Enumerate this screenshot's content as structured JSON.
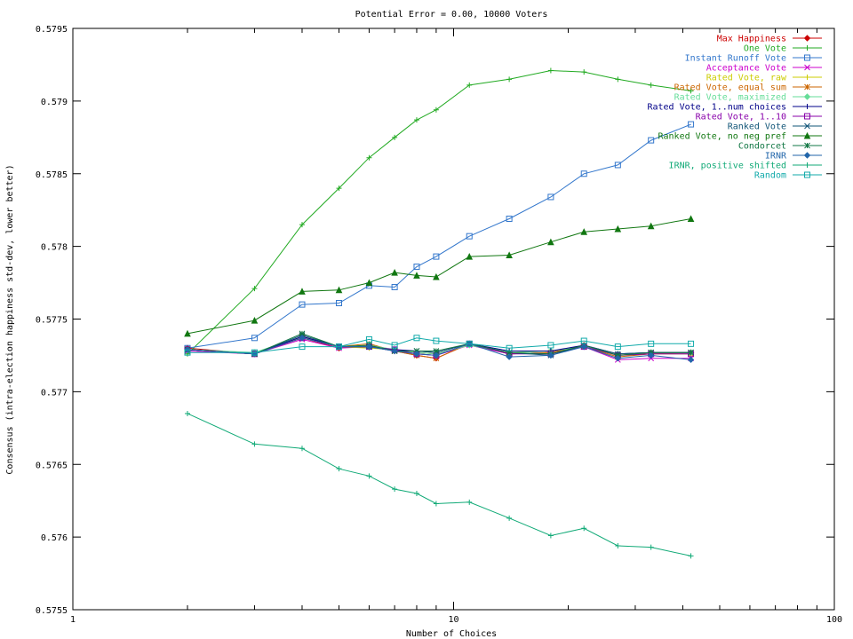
{
  "chart_data": {
    "type": "line",
    "title": "Potential Error = 0.00, 10000 Voters",
    "xlabel": "Number of Choices",
    "ylabel": "Consensus (intra-election happiness std-dev, lower better)",
    "x_scale": "log",
    "xlim": [
      1,
      100
    ],
    "ylim": [
      0.5755,
      0.5795
    ],
    "x_ticks": [
      1,
      10,
      100
    ],
    "x_tick_labels": [
      "1",
      "10",
      "100"
    ],
    "y_ticks": [
      0.5755,
      0.576,
      0.5765,
      0.577,
      0.5775,
      0.578,
      0.5785,
      0.579,
      0.5795
    ],
    "y_tick_labels": [
      "0.5755",
      "0.576",
      "0.5765",
      "0.577",
      "0.5775",
      "0.578",
      "0.5785",
      "0.579",
      "0.5795"
    ],
    "grid": false,
    "legend_position": "top-right",
    "x": [
      2,
      3,
      4,
      5,
      6,
      7,
      8,
      9,
      11,
      14,
      18,
      22,
      27,
      33,
      42
    ],
    "series": [
      {
        "name": "Max Happiness",
        "color": "#cc0000",
        "marker": "diamond",
        "values": [
          0.5773,
          0.57726,
          0.57737,
          0.5773,
          0.57732,
          0.57728,
          0.57725,
          0.57723,
          0.57733,
          0.57726,
          0.57727,
          0.57732,
          0.57725,
          0.57727,
          0.57727
        ]
      },
      {
        "name": "One Vote",
        "color": "#22aa22",
        "marker": "plus",
        "values": [
          0.57726,
          0.57771,
          0.57815,
          0.5784,
          0.57861,
          0.57875,
          0.57887,
          0.57894,
          0.57911,
          0.57915,
          0.57921,
          0.5792,
          0.57915,
          0.57911,
          0.57907
        ]
      },
      {
        "name": "Instant Runoff Vote",
        "color": "#3377cc",
        "marker": "square",
        "values": [
          0.5773,
          0.57737,
          0.5776,
          0.57761,
          0.57773,
          0.57772,
          0.57786,
          0.57793,
          0.57807,
          0.57819,
          0.57834,
          0.5785,
          0.57856,
          0.57873,
          0.57884
        ]
      },
      {
        "name": "Acceptance Vote",
        "color": "#cc00cc",
        "marker": "x",
        "values": [
          0.57728,
          0.57726,
          0.57736,
          0.5773,
          0.57731,
          0.57728,
          0.57726,
          0.57725,
          0.57732,
          0.57726,
          0.57727,
          0.57731,
          0.57722,
          0.57723,
          0.57723
        ]
      },
      {
        "name": "Rated Vote, raw",
        "color": "#cccc00",
        "marker": "plus",
        "values": [
          0.57729,
          0.57726,
          0.57737,
          0.57731,
          0.5773,
          0.57729,
          0.57727,
          0.57726,
          0.57732,
          0.57727,
          0.57728,
          0.57731,
          0.57725,
          0.57726,
          0.57727
        ]
      },
      {
        "name": "Rated Vote, equal sum",
        "color": "#cc6600",
        "marker": "star",
        "values": [
          0.57729,
          0.57726,
          0.57738,
          0.57731,
          0.57733,
          0.57728,
          0.57725,
          0.57723,
          0.57733,
          0.57726,
          0.57727,
          0.57731,
          0.57724,
          0.57726,
          0.57726
        ]
      },
      {
        "name": "Rated Vote, maximized",
        "color": "#66dd99",
        "marker": "diamond",
        "values": [
          0.57729,
          0.57727,
          0.57738,
          0.57731,
          0.57732,
          0.57729,
          0.57727,
          0.57726,
          0.57732,
          0.57727,
          0.57728,
          0.57731,
          0.57726,
          0.57727,
          0.57727
        ]
      },
      {
        "name": "Rated Vote, 1..num choices",
        "color": "#000088",
        "marker": "plus",
        "values": [
          0.57729,
          0.57726,
          0.57738,
          0.57731,
          0.57731,
          0.57729,
          0.57728,
          0.57727,
          0.57733,
          0.57728,
          0.57728,
          0.57732,
          0.57726,
          0.57727,
          0.57727
        ]
      },
      {
        "name": "Rated Vote, 1..10",
        "color": "#8800aa",
        "marker": "square",
        "values": [
          0.57729,
          0.57726,
          0.57737,
          0.57731,
          0.57731,
          0.57729,
          0.57726,
          0.57725,
          0.57733,
          0.57726,
          0.57726,
          0.57731,
          0.57725,
          0.57726,
          0.57726
        ]
      },
      {
        "name": "Ranked Vote",
        "color": "#115577",
        "marker": "x",
        "values": [
          0.57729,
          0.57726,
          0.57739,
          0.57731,
          0.57731,
          0.57728,
          0.57728,
          0.57727,
          0.57733,
          0.57727,
          0.57725,
          0.57732,
          0.57726,
          0.57727,
          0.57727
        ]
      },
      {
        "name": "Ranked Vote, no neg pref",
        "color": "#117711",
        "marker": "triangle",
        "values": [
          0.5774,
          0.57749,
          0.57769,
          0.5777,
          0.57775,
          0.57782,
          0.5778,
          0.57779,
          0.57793,
          0.57794,
          0.57803,
          0.5781,
          0.57812,
          0.57814,
          0.57819
        ]
      },
      {
        "name": "Condorcet",
        "color": "#117744",
        "marker": "star",
        "values": [
          0.57729,
          0.57726,
          0.5774,
          0.57731,
          0.57732,
          0.57728,
          0.57728,
          0.57728,
          0.57733,
          0.57727,
          0.57726,
          0.57732,
          0.57725,
          0.57727,
          0.57727
        ]
      },
      {
        "name": "IRNR",
        "color": "#2266aa",
        "marker": "diamond",
        "values": [
          0.57729,
          0.57726,
          0.57737,
          0.57731,
          0.57731,
          0.57728,
          0.57726,
          0.57725,
          0.57733,
          0.57724,
          0.57725,
          0.57731,
          0.57723,
          0.57725,
          0.57722
        ]
      },
      {
        "name": "IRNR, positive shifted",
        "color": "#11aa77",
        "marker": "plus",
        "values": [
          0.57685,
          0.57664,
          0.57661,
          0.57647,
          0.57642,
          0.57633,
          0.5763,
          0.57623,
          0.57624,
          0.57613,
          0.57601,
          0.57606,
          0.57594,
          0.57593,
          0.57587
        ]
      },
      {
        "name": "Random",
        "color": "#11aaaa",
        "marker": "square",
        "values": [
          0.57727,
          0.57727,
          0.57731,
          0.57731,
          0.57736,
          0.57732,
          0.57737,
          0.57735,
          0.57733,
          0.5773,
          0.57732,
          0.57735,
          0.57731,
          0.57733,
          0.57733
        ]
      }
    ]
  }
}
